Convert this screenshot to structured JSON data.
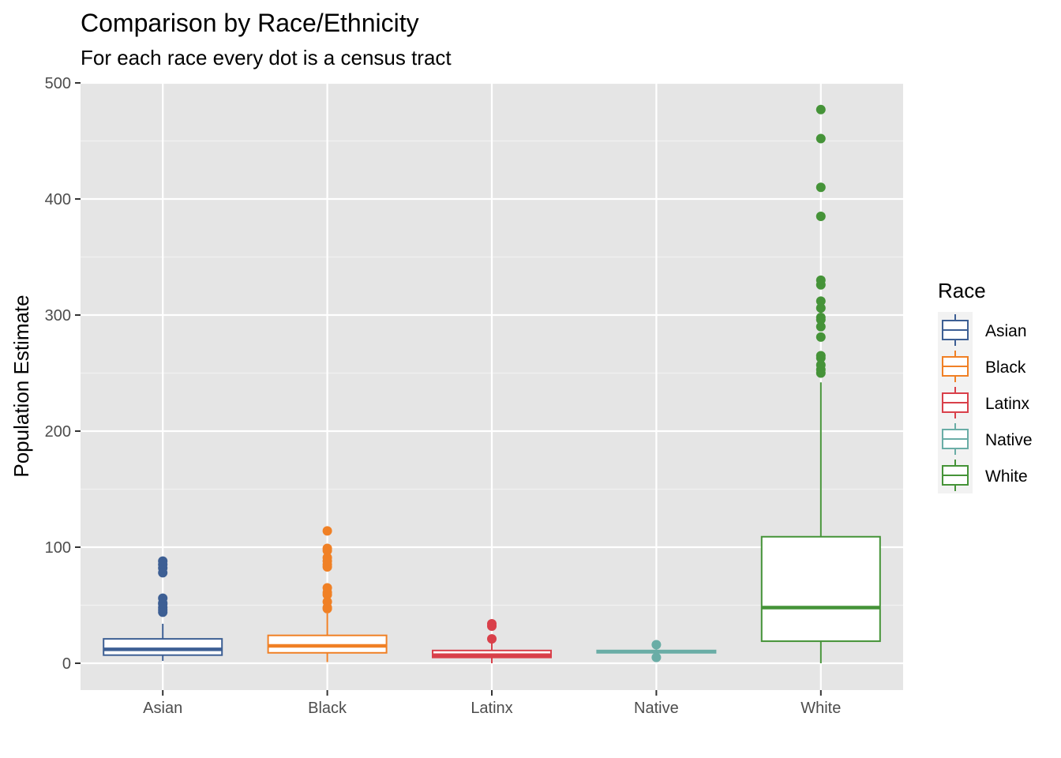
{
  "chart_data": {
    "type": "boxplot",
    "title": "Comparison by Race/Ethnicity",
    "subtitle": "For each race every dot is a census tract",
    "xlabel": "",
    "ylabel": "Population Estimate",
    "ylim": [
      -22,
      500
    ],
    "yticks": [
      0,
      100,
      200,
      300,
      400,
      500
    ],
    "ytick_labels": [
      "0",
      "100",
      "200",
      "300",
      "400",
      "500"
    ],
    "grid": true,
    "legend_title": "Race",
    "legend_position": "right",
    "categories": [
      "Asian",
      "Black",
      "Latinx",
      "Native",
      "White"
    ],
    "series": [
      {
        "name": "Asian",
        "color": "#3d5f94",
        "min": 2,
        "q1": 7,
        "median": 12,
        "q3": 21,
        "max": 34,
        "outliers": [
          44,
          46,
          48,
          51,
          52,
          56,
          78,
          82,
          85,
          88
        ]
      },
      {
        "name": "Black",
        "color": "#f08025",
        "min": 1,
        "q1": 9,
        "median": 15,
        "q3": 24,
        "max": 43,
        "outliers": [
          47,
          48,
          53,
          59,
          61,
          65,
          83,
          85,
          88,
          91,
          97,
          99,
          114
        ]
      },
      {
        "name": "Latinx",
        "color": "#d9404a",
        "min": 0,
        "q1": 5,
        "median": 7,
        "q3": 11,
        "max": 18,
        "outliers": [
          21,
          32,
          34
        ]
      },
      {
        "name": "Native",
        "color": "#6aada6",
        "min": 9,
        "q1": 9,
        "median": 10,
        "q3": 11,
        "max": 12,
        "outliers": [
          5,
          16
        ]
      },
      {
        "name": "White",
        "color": "#459338",
        "min": 0,
        "q1": 19,
        "median": 48,
        "q3": 109,
        "max": 242,
        "outliers": [
          250,
          253,
          257,
          263,
          265,
          281,
          290,
          296,
          298,
          306,
          312,
          326,
          330,
          385,
          410,
          452,
          477
        ]
      }
    ]
  }
}
